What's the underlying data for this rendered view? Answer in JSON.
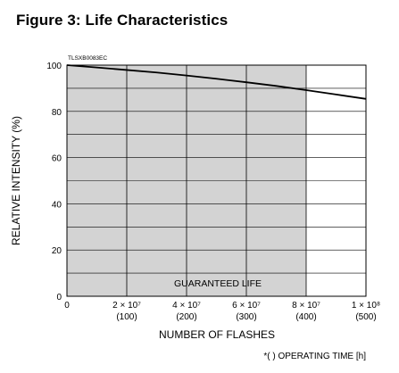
{
  "figure_title": "Figure 3: Life Characteristics",
  "footnote": "*( ) OPERATING TIME [h]",
  "chart_data": {
    "type": "line",
    "code_label": "TLSXB0083EC",
    "xlabel": "NUMBER OF FLASHES",
    "ylabel": "RELATIVE INTENSITY (%)",
    "xlim": [
      0,
      100000000
    ],
    "ylim": [
      0,
      100
    ],
    "x_ticks": [
      {
        "value": 0,
        "label": "0",
        "sub": ""
      },
      {
        "value": 20000000,
        "label": "2 × 10⁷",
        "sub": "(100)"
      },
      {
        "value": 40000000,
        "label": "4 × 10⁷",
        "sub": "(200)"
      },
      {
        "value": 60000000,
        "label": "6 × 10⁷",
        "sub": "(300)"
      },
      {
        "value": 80000000,
        "label": "8 × 10⁷",
        "sub": "(400)"
      },
      {
        "value": 100000000,
        "label": "1 × 10⁸",
        "sub": "(500)"
      }
    ],
    "y_ticks": [
      0,
      20,
      40,
      60,
      80,
      100
    ],
    "grid": true,
    "shaded_region": {
      "x0": 0,
      "x1": 80000000,
      "label": "GUARANTEED LIFE",
      "color": "#d3d3d3"
    },
    "series": [
      {
        "x": [
          0,
          10000000,
          20000000,
          30000000,
          40000000,
          50000000,
          60000000,
          70000000,
          80000000,
          90000000,
          100000000
        ],
        "y": [
          100,
          99,
          97.9,
          96.8,
          95.5,
          94.1,
          92.6,
          91,
          89.2,
          87.3,
          85.4
        ],
        "color": "#000000"
      }
    ]
  }
}
